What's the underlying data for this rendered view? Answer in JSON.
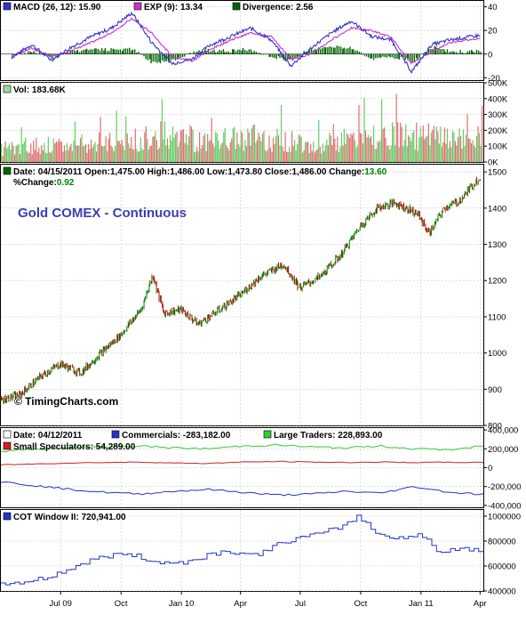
{
  "chart_title": "Gold COMEX - Continuous",
  "watermark": "© TimingCharts.com",
  "x_axis": {
    "labels": [
      "Jul 09",
      "Oct",
      "Jan 10",
      "Apr",
      "Jul",
      "Oct",
      "Jan 11",
      "Apr"
    ]
  },
  "colors": {
    "price_up": "#008000",
    "price_down": "#c00000",
    "macd": "#3333cc",
    "signal": "#cc33cc",
    "divergence": "#006600",
    "vol_up": "#66cc66",
    "vol_down": "#e07070"
  },
  "macd_panel": {
    "legend": [
      {
        "label": "MACD (26, 12): 15.90",
        "color": "#3333cc"
      },
      {
        "label": "EXP (9): 13.34",
        "color": "#cc33cc"
      },
      {
        "label": "Divergence: 2.56",
        "color": "#006600"
      }
    ],
    "y_ticks": [
      "40",
      "20",
      "0",
      "-20"
    ]
  },
  "volume_panel": {
    "legend": [
      {
        "label": "Vol: 183.68K",
        "color": "#99dd99"
      }
    ],
    "y_ticks": [
      "500K",
      "400K",
      "300K",
      "200K",
      "100K",
      "0K"
    ]
  },
  "price_panel": {
    "legend_prefix": "Date: 04/15/2011  Open:1,475.00  High:1,486.00  Low:1,473.80  Close:1,486.00  Change:",
    "legend_change": "13.60",
    "legend_pct_label": "%Change:",
    "legend_pct_value": "0.92",
    "y_ticks": [
      "1500",
      "1400",
      "1300",
      "1200",
      "1100",
      "1000",
      "900",
      "800"
    ]
  },
  "cot_panel": {
    "legend": [
      {
        "label": "Date: 04/12/2011",
        "color": "#ffffff"
      },
      {
        "label": "Commercials: -283,182.00",
        "color": "#2233cc"
      },
      {
        "label": "Large Traders: 228,893.00",
        "color": "#33cc33"
      },
      {
        "label": "Small Speculators: 54,289.00",
        "color": "#cc2222"
      }
    ],
    "y_ticks": [
      "400,000",
      "200,000",
      "0",
      "-200,000",
      "-400,000"
    ]
  },
  "cotw_panel": {
    "legend": [
      {
        "label": "COT Window II: 720,941.00",
        "color": "#2233cc"
      }
    ],
    "y_ticks": [
      "1000000",
      "800000",
      "600000",
      "400000"
    ]
  },
  "chart_data": [
    {
      "type": "line",
      "name": "macd",
      "ylim": [
        -22,
        45
      ],
      "x": [
        "2009-05-01",
        "2009-06-01",
        "2009-07-01",
        "2009-08-01",
        "2009-09-01",
        "2009-10-01",
        "2009-11-01",
        "2009-12-01",
        "2010-01-01",
        "2010-02-01",
        "2010-03-01",
        "2010-04-01",
        "2010-05-01",
        "2010-06-01",
        "2010-07-01",
        "2010-08-01",
        "2010-09-01",
        "2010-10-01",
        "2010-11-01",
        "2010-12-01",
        "2011-01-01",
        "2011-02-01",
        "2011-03-01",
        "2011-04-15"
      ],
      "series": [
        {
          "name": "MACD (26, 12)",
          "values": [
            -3,
            8,
            -5,
            6,
            15,
            22,
            35,
            10,
            -8,
            -4,
            8,
            15,
            22,
            12,
            -10,
            5,
            18,
            28,
            15,
            12,
            -15,
            8,
            12,
            15.9
          ]
        },
        {
          "name": "EXP (9)",
          "values": [
            -2,
            5,
            -2,
            3,
            10,
            18,
            30,
            18,
            -2,
            -6,
            4,
            12,
            18,
            15,
            -4,
            0,
            12,
            22,
            20,
            14,
            -8,
            2,
            10,
            13.34
          ]
        },
        {
          "name": "Divergence",
          "values": [
            -1,
            3,
            -3,
            3,
            5,
            4,
            5,
            -8,
            -6,
            2,
            4,
            3,
            4,
            -3,
            -6,
            5,
            6,
            6,
            -5,
            -2,
            -7,
            6,
            2,
            2.56
          ]
        }
      ]
    },
    {
      "type": "bar",
      "name": "volume",
      "ylim": [
        0,
        500000
      ],
      "summary": "Daily volume mostly 100K–250K, spikes up to ~420K; last 183.68K",
      "series": [
        {
          "name": "Vol",
          "values": [
            110000,
            130000,
            120000,
            140000,
            150000,
            170000,
            210000,
            190000,
            160000,
            180000,
            200000,
            170000,
            160000,
            150000,
            170000,
            190000,
            210000,
            200000,
            180000,
            183680
          ]
        }
      ]
    },
    {
      "type": "line",
      "name": "price",
      "title": "Gold COMEX - Continuous",
      "ylim": [
        800,
        1520
      ],
      "x": [
        "2009-04-15",
        "2009-05-15",
        "2009-06-15",
        "2009-07-15",
        "2009-08-15",
        "2009-09-15",
        "2009-10-15",
        "2009-11-15",
        "2009-12-03",
        "2009-12-20",
        "2010-01-15",
        "2010-02-10",
        "2010-03-15",
        "2010-04-15",
        "2010-05-15",
        "2010-06-20",
        "2010-07-15",
        "2010-08-15",
        "2010-09-15",
        "2010-10-15",
        "2010-11-10",
        "2010-12-07",
        "2011-01-10",
        "2011-01-28",
        "2011-02-20",
        "2011-03-15",
        "2011-04-15"
      ],
      "series": [
        {
          "name": "Close",
          "values": [
            870,
            885,
            935,
            970,
            945,
            1000,
            1050,
            1120,
            1215,
            1110,
            1120,
            1080,
            1120,
            1160,
            1210,
            1245,
            1180,
            1210,
            1270,
            1350,
            1400,
            1415,
            1385,
            1330,
            1400,
            1420,
            1486
          ]
        }
      ]
    },
    {
      "type": "line",
      "name": "cot",
      "ylim": [
        -420000,
        420000
      ],
      "series": [
        {
          "name": "Commercials",
          "values": [
            -150000,
            -190000,
            -230000,
            -260000,
            -280000,
            -250000,
            -230000,
            -260000,
            -290000,
            -280000,
            -250000,
            -270000,
            -200000,
            -260000,
            -283182
          ]
        },
        {
          "name": "Large Traders",
          "values": [
            170000,
            200000,
            210000,
            220000,
            230000,
            210000,
            200000,
            230000,
            240000,
            220000,
            210000,
            230000,
            200000,
            190000,
            228893
          ]
        },
        {
          "name": "Small Speculators",
          "values": [
            30000,
            40000,
            50000,
            55000,
            60000,
            50000,
            45000,
            60000,
            65000,
            60000,
            55000,
            60000,
            55000,
            58000,
            54289
          ]
        }
      ]
    },
    {
      "type": "line",
      "name": "cot_window",
      "ylim": [
        400000,
        1050000
      ],
      "series": [
        {
          "name": "COT Window II",
          "values": [
            460000,
            470000,
            500000,
            560000,
            630000,
            680000,
            700000,
            650000,
            620000,
            640000,
            700000,
            720000,
            680000,
            760000,
            820000,
            850000,
            900000,
            1000000,
            850000,
            830000,
            850000,
            700000,
            750000,
            720941
          ]
        }
      ]
    }
  ]
}
